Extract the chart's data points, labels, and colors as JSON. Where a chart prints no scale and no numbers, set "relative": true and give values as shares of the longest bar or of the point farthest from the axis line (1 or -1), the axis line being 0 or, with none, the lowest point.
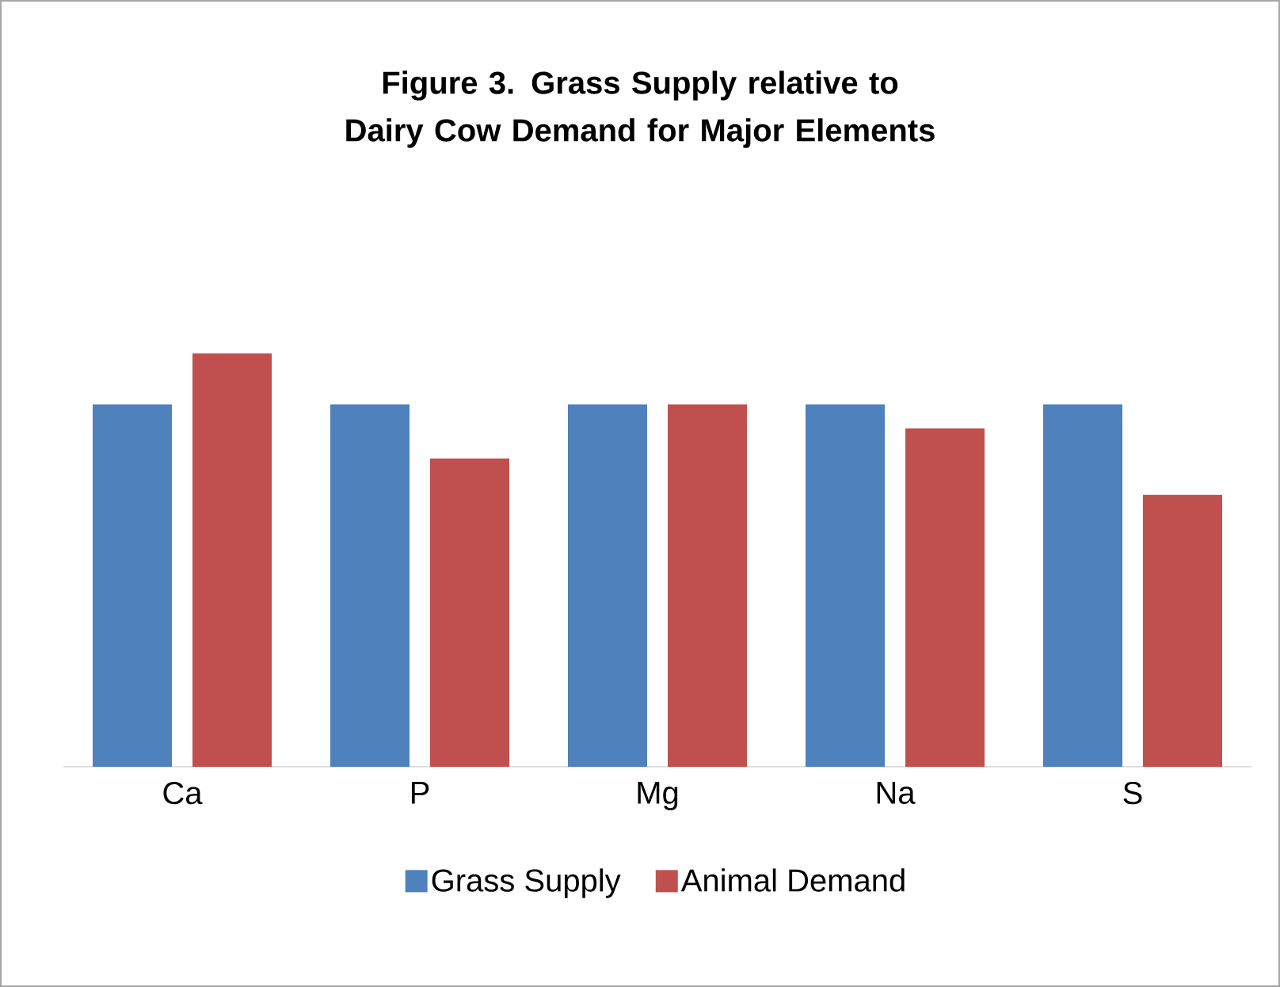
{
  "chart_data": {
    "type": "bar",
    "title": "Figure 3. Grass Supply relative to Dairy Cow Demand for Major Elements",
    "categories": [
      "Ca",
      "P",
      "Mg",
      "Na",
      "S"
    ],
    "relative": true,
    "legend": "bottom",
    "series": [
      {
        "name": "Grass Supply",
        "color": "#4f81bd",
        "values": [
          0.877,
          0.877,
          0.877,
          0.877,
          0.877
        ]
      },
      {
        "name": "Animal Demand",
        "color": "#c0504d",
        "values": [
          1,
          0.746,
          0.877,
          0.819,
          0.658
        ]
      }
    ]
  }
}
